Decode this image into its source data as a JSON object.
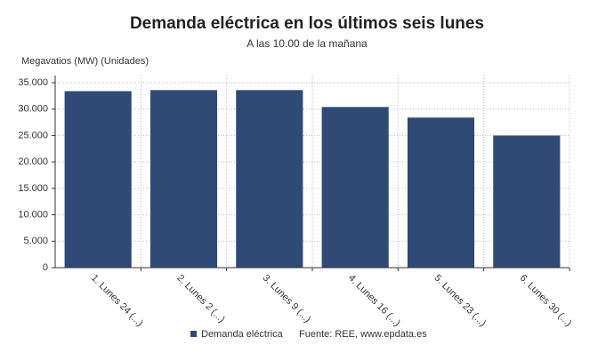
{
  "chart_data": {
    "type": "bar",
    "title": "Demanda eléctrica en los últimos seis lunes",
    "subtitle": "A las 10.00 de la mañana",
    "y_label": "Megavatios (MW) (Unidades)",
    "source": "Fuente: REE, www.epdata.es",
    "categories": [
      "1. Lunes 24 (...)",
      "2. Lunes 2 (...)",
      "3. Lunes 9 (...)",
      "4. Lunes 16 (...)",
      "5. Lunes 23 (...)",
      "6. Lunes 30 (...)"
    ],
    "series": [
      {
        "name": "Demanda eléctrica",
        "color": "#2e4a75",
        "values": [
          33400,
          33600,
          33600,
          30400,
          28400,
          25000
        ]
      }
    ],
    "ylim": [
      0,
      35000
    ],
    "yticks": [
      0,
      {
        "value": 5000,
        "label": "5.000"
      },
      {
        "value": 10000,
        "label": "10.000"
      },
      {
        "value": 15000,
        "label": "15.000"
      },
      {
        "value": 20000,
        "label": "20.000"
      },
      {
        "value": 25000,
        "label": "25.000"
      },
      {
        "value": 30000,
        "label": "30.000"
      },
      {
        "value": 35000,
        "label": "35.000"
      }
    ],
    "grid": true
  }
}
